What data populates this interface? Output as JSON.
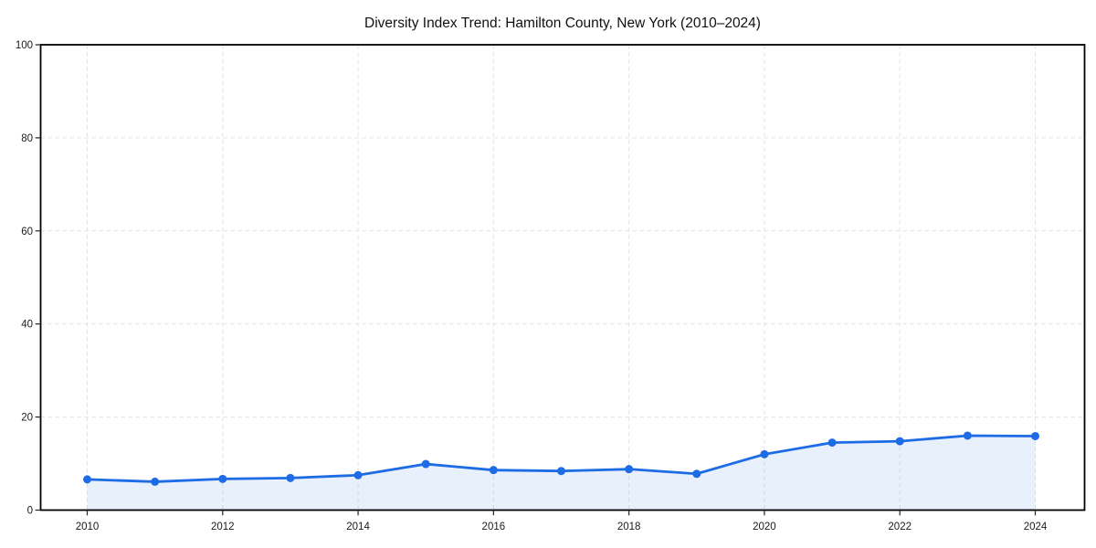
{
  "chart_data": {
    "type": "area",
    "title": "Diversity Index Trend: Hamilton County, New York (2010–2024)",
    "xlabel": "",
    "ylabel": "",
    "x": [
      2010,
      2011,
      2012,
      2013,
      2014,
      2015,
      2016,
      2017,
      2018,
      2019,
      2020,
      2021,
      2022,
      2023,
      2024
    ],
    "series": [
      {
        "name": "Diversity Index",
        "values": [
          6.6,
          6.1,
          6.7,
          6.9,
          7.5,
          9.9,
          8.6,
          8.4,
          8.8,
          7.8,
          12.0,
          14.5,
          14.8,
          16.0,
          15.9
        ]
      }
    ],
    "ylim": [
      0,
      100
    ],
    "xticks": [
      2010,
      2012,
      2014,
      2016,
      2018,
      2020,
      2022,
      2024
    ],
    "yticks": [
      0,
      20,
      40,
      60,
      80,
      100
    ],
    "grid": true,
    "legend_position": "none",
    "marker": "circle",
    "colors": {
      "line": "#1d6ce5",
      "fill": "rgba(29, 108, 229, 0.10)",
      "grid": "#e3e3e3",
      "axis": "#000000",
      "tick_label": "#1a1a1a",
      "title": "#111111",
      "background": "#ffffff"
    }
  }
}
